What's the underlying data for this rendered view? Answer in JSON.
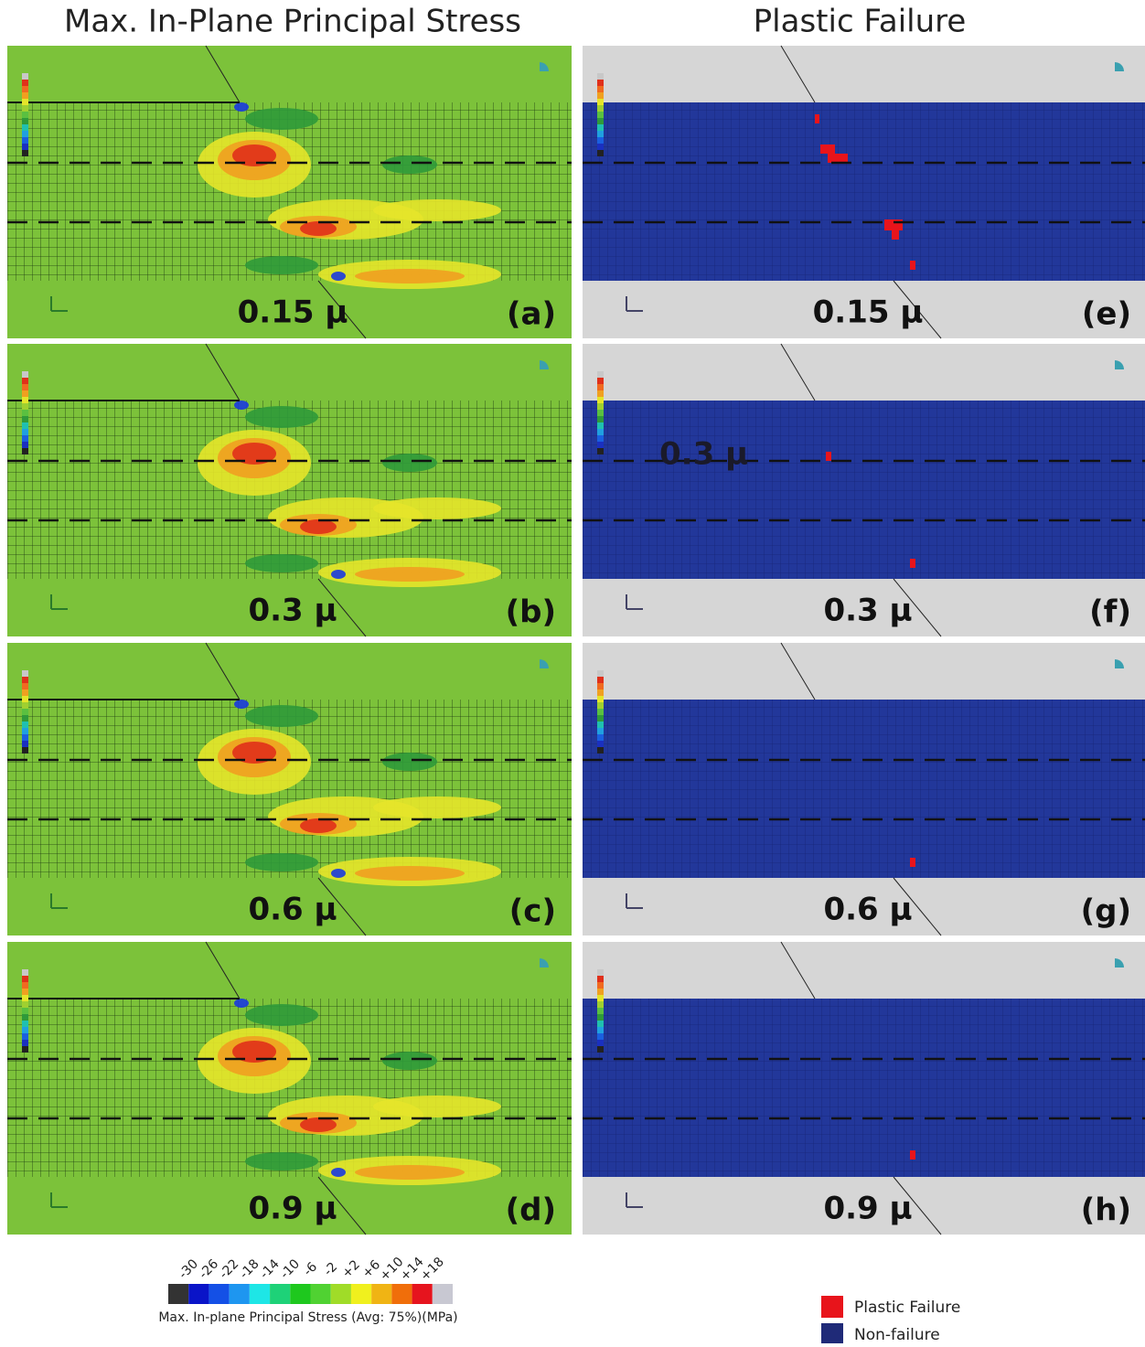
{
  "titles": [
    "Max. In-Plane Principal Stress",
    "Plastic Failure"
  ],
  "panels": [
    {
      "value_label": "0.15 μ",
      "tag": "(a)"
    },
    {
      "value_label": "0.3 μ",
      "tag": "(b)"
    },
    {
      "value_label": "0.6 μ",
      "tag": "(c)"
    },
    {
      "value_label": "0.9 μ",
      "tag": "(d)"
    },
    {
      "value_label": "0.15 μ",
      "tag": "(e)"
    },
    {
      "value_label": "0.3 μ",
      "tag": "(f)",
      "overlay": "0.3 μ"
    },
    {
      "value_label": "0.6 μ",
      "tag": "(g)"
    },
    {
      "value_label": "0.9 μ",
      "tag": "(h)"
    }
  ],
  "colorbar": {
    "ticks": [
      "-30",
      "-26",
      "-22",
      "-18",
      "-14",
      "-10",
      "-6",
      "-2",
      "+2",
      "+6",
      "+10",
      "+14",
      "+18"
    ],
    "caption": "Max. In-plane Principal Stress (Avg: 75%)(MPa)"
  },
  "legend": [
    {
      "label": "Plastic Failure",
      "color": "#e8141b"
    },
    {
      "label": "Non-failure",
      "color": "#1f2a78"
    }
  ]
}
